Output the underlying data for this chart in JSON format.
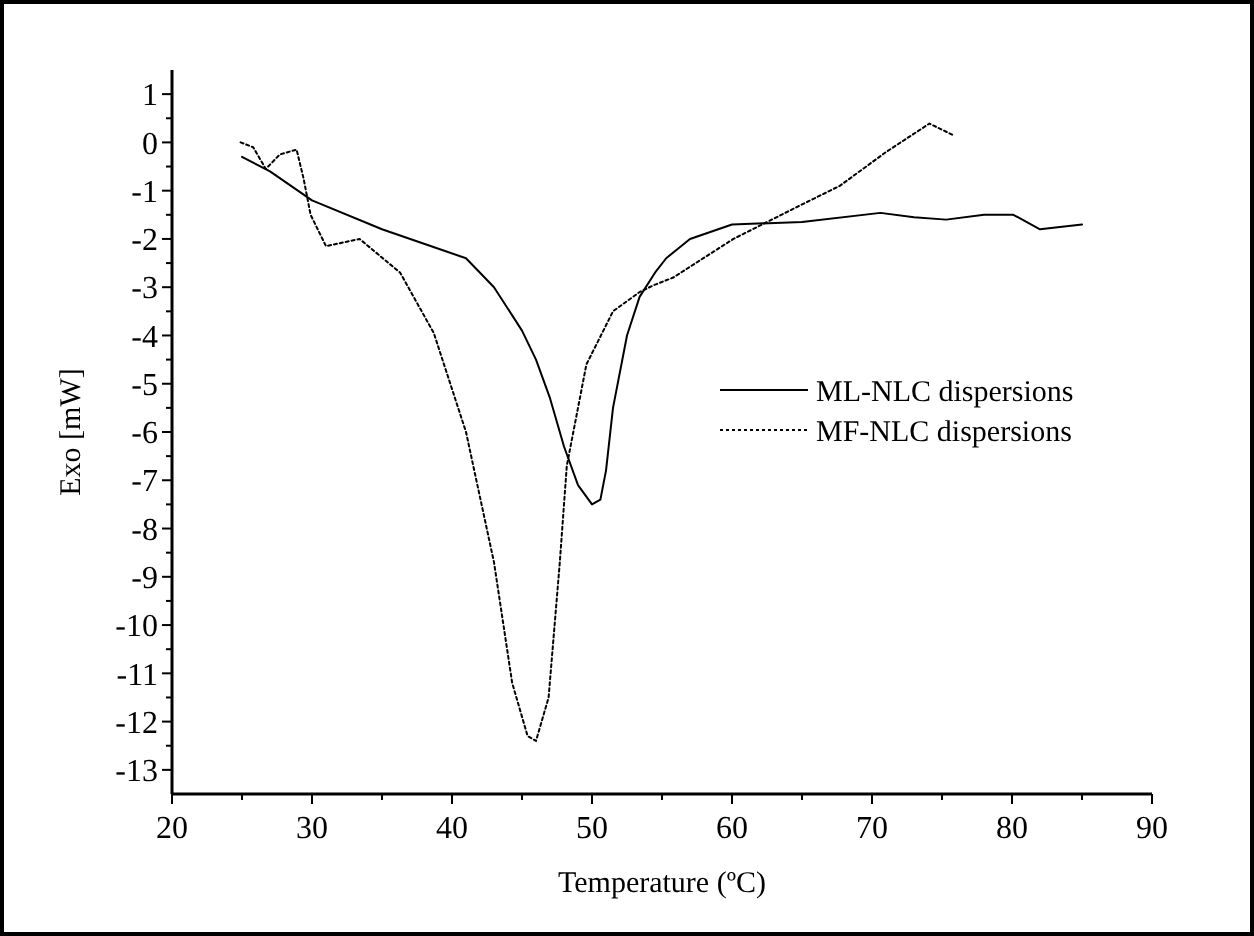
{
  "chart_data": {
    "type": "line",
    "xlabel": "Temperature (ºC)",
    "ylabel": "Exo [mW]",
    "xlim": [
      20,
      90
    ],
    "ylim": [
      -13.5,
      1.5
    ],
    "xticks": [
      20,
      {
        "value": 25,
        "label": null
      },
      30,
      {
        "value": 35,
        "label": null
      },
      40,
      {
        "value": 45,
        "label": null
      },
      50,
      {
        "value": 55,
        "label": null
      },
      60,
      {
        "value": 65,
        "label": null
      },
      70,
      {
        "value": 75,
        "label": null
      },
      80,
      {
        "value": 85,
        "label": null
      },
      90
    ],
    "yticks": [
      -13,
      {
        "value": -12.5,
        "label": null
      },
      -12,
      {
        "value": -11.5,
        "label": null
      },
      -11,
      {
        "value": -10.5,
        "label": null
      },
      -10,
      {
        "value": -9.5,
        "label": null
      },
      -9,
      {
        "value": -8.5,
        "label": null
      },
      -8,
      {
        "value": -7.5,
        "label": null
      },
      -7,
      {
        "value": -6.5,
        "label": null
      },
      -6,
      {
        "value": -5.5,
        "label": null
      },
      -5,
      {
        "value": -4.5,
        "label": null
      },
      -4,
      {
        "value": -3.5,
        "label": null
      },
      -3,
      {
        "value": -2.5,
        "label": null
      },
      -2,
      {
        "value": -1.5,
        "label": null
      },
      -1,
      {
        "value": -0.5,
        "label": null
      },
      0,
      {
        "value": 0.5,
        "label": null
      },
      1
    ],
    "grid": false,
    "legend": "right",
    "series": [
      {
        "name": "ML-NLC dispersions",
        "color": "#000000",
        "line_style": "solid",
        "x": [
          25,
          27,
          30,
          35,
          38,
          41,
          43,
          45,
          46,
          47,
          48,
          49,
          50,
          50.6,
          51,
          51.5,
          52.5,
          53.4,
          54.5,
          55.3,
          57,
          60,
          65,
          70.6,
          73,
          75.3,
          78,
          80.1,
          82,
          85
        ],
        "values": [
          -0.3,
          -0.6,
          -1.2,
          -1.8,
          -2.1,
          -2.4,
          -3.0,
          -3.9,
          -4.5,
          -5.3,
          -6.3,
          -7.1,
          -7.5,
          -7.4,
          -6.8,
          -5.5,
          -4.0,
          -3.2,
          -2.7,
          -2.4,
          -2.0,
          -1.7,
          -1.65,
          -1.46,
          -1.55,
          -1.6,
          -1.5,
          -1.5,
          -1.8,
          -1.7
        ]
      },
      {
        "name": "MF-NLC dispersions",
        "color": "#000000",
        "line_style": "dotted",
        "x": [
          24.9,
          25.8,
          26.7,
          27.7,
          28.9,
          29.4,
          29.9,
          31,
          33.4,
          36.3,
          38.7,
          41,
          43,
          44.3,
          45.4,
          46,
          46.9,
          47.7,
          48.2,
          49.6,
          51.5,
          53.4,
          54.4,
          55.8,
          60.1,
          64.9,
          67.7,
          71,
          74.1,
          75.8
        ],
        "values": [
          0,
          -0.1,
          -0.55,
          -0.25,
          -0.15,
          -0.75,
          -1.5,
          -2.15,
          -2.0,
          -2.7,
          -3.95,
          -6,
          -8.7,
          -11.2,
          -12.3,
          -12.4,
          -11.5,
          -8.7,
          -6.7,
          -4.6,
          -3.5,
          -3.1,
          -2.96,
          -2.8,
          -2.0,
          -1.3,
          -0.9,
          -0.2,
          0.39,
          0.15
        ]
      }
    ]
  }
}
